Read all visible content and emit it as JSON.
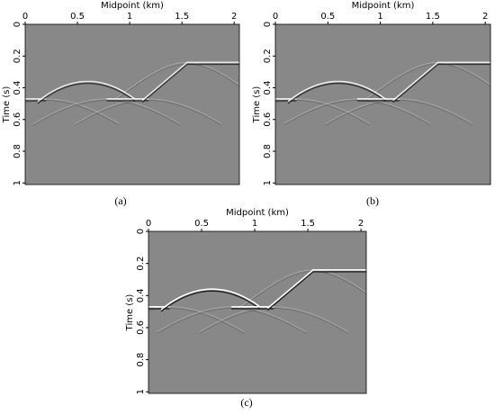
{
  "chart_data": [
    {
      "type": "image",
      "xlabel": "Midpoint (km)",
      "ylabel": "Time (s)",
      "caption": "(a)",
      "xlim": [
        0,
        2.05
      ],
      "xticks": [
        0,
        0.5,
        1,
        1.5,
        2
      ],
      "ylim": [
        0,
        1.01
      ],
      "yticks": [
        0,
        0.2,
        0.4,
        0.6,
        0.8,
        1
      ]
    },
    {
      "type": "image",
      "xlabel": "Midpoint (km)",
      "ylabel": "Time (s)",
      "caption": "(b)",
      "xlim": [
        0,
        2.05
      ],
      "xticks": [
        0,
        0.5,
        1,
        1.5,
        2
      ],
      "ylim": [
        0,
        1.01
      ],
      "yticks": [
        0,
        0.2,
        0.4,
        0.6,
        0.8,
        1
      ]
    },
    {
      "type": "image",
      "xlabel": "Midpoint (km)",
      "ylabel": "Time (s)",
      "caption": "(c)",
      "xlim": [
        0,
        2.05
      ],
      "xticks": [
        0,
        0.5,
        1,
        1.5,
        2
      ],
      "ylim": [
        0,
        1.01
      ],
      "yticks": [
        0,
        0.2,
        0.4,
        0.6,
        0.8,
        1
      ]
    }
  ]
}
